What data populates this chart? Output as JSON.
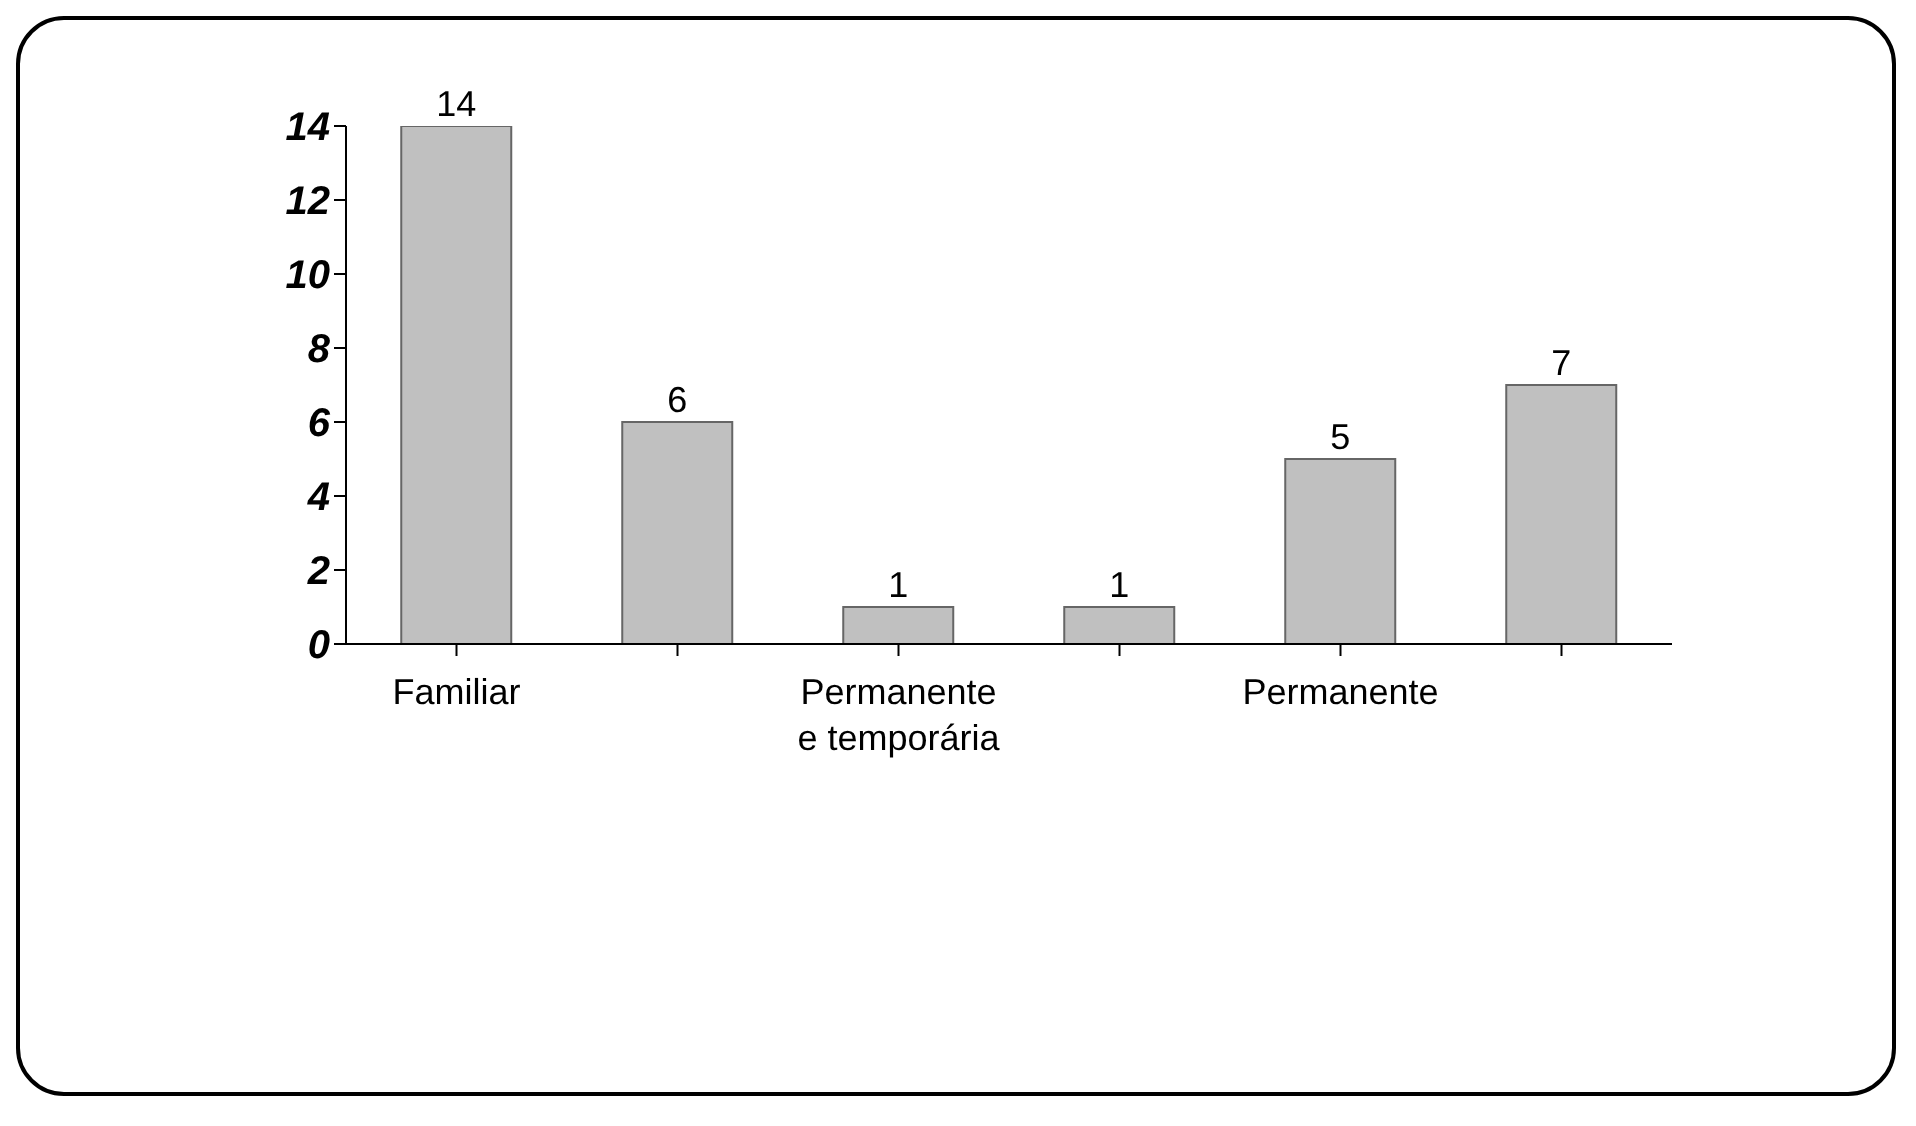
{
  "chart_data": {
    "type": "bar",
    "categories": [
      "Familiar",
      null,
      "Permanente e temporária",
      null,
      "Permanente",
      null
    ],
    "values": [
      14,
      6,
      1,
      1,
      5,
      7
    ],
    "color": "#c0c0c0",
    "ylim": [
      0,
      14
    ],
    "yticks": [
      0,
      2,
      4,
      6,
      8,
      10,
      12,
      14
    ],
    "data_labels": true
  }
}
